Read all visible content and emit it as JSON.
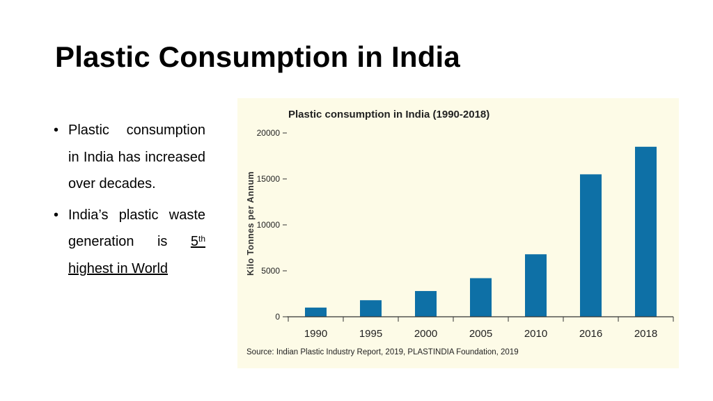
{
  "slide": {
    "title": "Plastic Consumption in India",
    "bullets": [
      {
        "text": "Plastic consumption in India has increased over decades."
      },
      {
        "text_before": "India’s plastic waste generation is ",
        "ordinal_num": "5",
        "ordinal_suffix": "th",
        "text_after": " highest in World"
      }
    ]
  },
  "chart_data": {
    "type": "bar",
    "title": "Plastic consumption in India (1990-2018)",
    "ylabel": "Kilo Tonnes per Annum",
    "xlabel": "",
    "categories": [
      "1990",
      "1995",
      "2000",
      "2005",
      "2010",
      "2016",
      "2018"
    ],
    "values": [
      1000,
      1800,
      2800,
      4200,
      6800,
      15500,
      18500
    ],
    "ylim": [
      0,
      20000
    ],
    "yticks": [
      0,
      5000,
      10000,
      15000,
      20000
    ],
    "ytick_labels": [
      "0",
      "5000",
      "10000",
      "15000",
      "20000"
    ],
    "bar_color": "#0e70a6",
    "background_color": "#fdfbe7",
    "grid": false,
    "legend": "none",
    "source": "Source: Indian Plastic Industry Report, 2019, PLASTINDIA Foundation, 2019"
  }
}
